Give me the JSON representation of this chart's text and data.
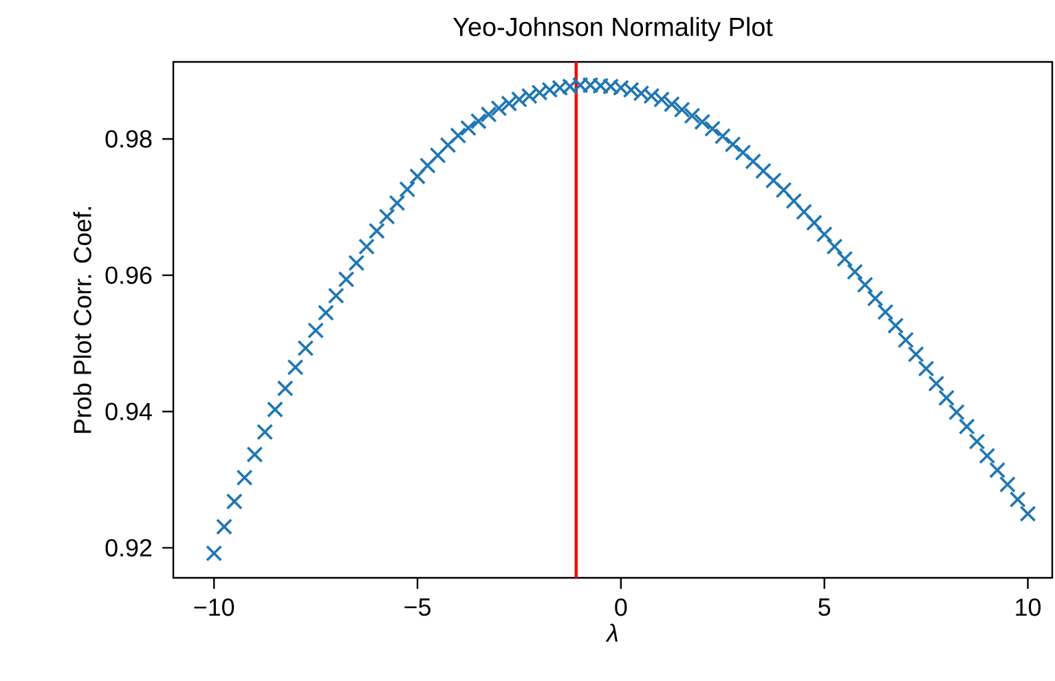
{
  "chart_data": {
    "type": "scatter",
    "title": "Yeo-Johnson Normality Plot",
    "xlabel": "λ",
    "ylabel": "Prob Plot Corr. Coef.",
    "marker": "cross",
    "xlim": [
      -11,
      10.6
    ],
    "ylim": [
      0.9156,
      0.9913
    ],
    "xticks": [
      {
        "value": -10,
        "label": "−10"
      },
      {
        "value": -5,
        "label": "−5"
      },
      0,
      5,
      10
    ],
    "yticks": [
      0.92,
      0.94,
      0.96,
      0.98
    ],
    "ref_lines": [
      {
        "axis": "x",
        "value": -1.1,
        "color": "#ff0000"
      }
    ],
    "series": [
      {
        "color": "#1f77b4",
        "x": [
          -10,
          -9.75,
          -9.5,
          -9.25,
          -9,
          -8.75,
          -8.5,
          -8.25,
          -8,
          -7.75,
          -7.5,
          -7.25,
          -7,
          -6.75,
          -6.5,
          -6.25,
          -6,
          -5.75,
          -5.5,
          -5.25,
          -5,
          -4.75,
          -4.5,
          -4.25,
          -4,
          -3.75,
          -3.5,
          -3.25,
          -3,
          -2.75,
          -2.5,
          -2.25,
          -2,
          -1.75,
          -1.5,
          -1.25,
          -1,
          -0.75,
          -0.5,
          -0.25,
          0,
          0.25,
          0.5,
          0.75,
          1,
          1.25,
          1.5,
          1.75,
          2,
          2.25,
          2.5,
          2.75,
          3,
          3.25,
          3.5,
          3.75,
          4,
          4.25,
          4.5,
          4.75,
          5,
          5.25,
          5.5,
          5.75,
          6,
          6.25,
          6.5,
          6.75,
          7,
          7.25,
          7.5,
          7.75,
          8,
          8.25,
          8.5,
          8.75,
          9,
          9.25,
          9.5,
          9.75,
          10
        ],
        "values": [
          0.9192,
          0.9231,
          0.9268,
          0.9303,
          0.9337,
          0.937,
          0.9403,
          0.9434,
          0.9465,
          0.9493,
          0.9519,
          0.9545,
          0.957,
          0.9594,
          0.9618,
          0.9642,
          0.9665,
          0.9686,
          0.9706,
          0.9726,
          0.9745,
          0.9761,
          0.9776,
          0.9791,
          0.9805,
          0.9816,
          0.9826,
          0.9836,
          0.9845,
          0.9852,
          0.9858,
          0.9863,
          0.9868,
          0.9872,
          0.9875,
          0.9877,
          0.9879,
          0.9879,
          0.9878,
          0.9877,
          0.9875,
          0.9872,
          0.9867,
          0.9863,
          0.9858,
          0.9851,
          0.9843,
          0.9834,
          0.9825,
          0.9815,
          0.9804,
          0.9792,
          0.978,
          0.9767,
          0.9753,
          0.9739,
          0.9725,
          0.9709,
          0.9693,
          0.9677,
          0.966,
          0.9642,
          0.9624,
          0.9605,
          0.9586,
          0.9566,
          0.9546,
          0.9526,
          0.9505,
          0.9484,
          0.9463,
          0.9441,
          0.942,
          0.9399,
          0.9378,
          0.9356,
          0.9335,
          0.9314,
          0.9293,
          0.9271,
          0.925
        ]
      }
    ]
  }
}
